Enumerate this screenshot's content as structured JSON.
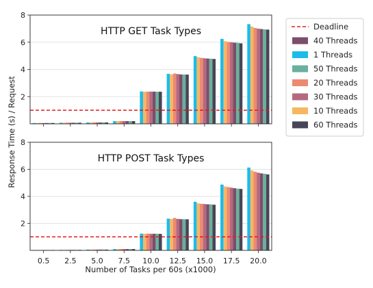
{
  "chart_data": {
    "type": "bar",
    "xlabel": "Number of Tasks per 60s (x1000)",
    "ylabel": "Response Time (s) / Request",
    "categories": [
      "0.5",
      "2.5",
      "5.0",
      "7.5",
      "10.0",
      "12.5",
      "15.0",
      "17.5",
      "20.0"
    ],
    "deadline": {
      "name": "Deadline",
      "value": 1.0,
      "color": "#e31a1c"
    },
    "legend_position": "outside-right",
    "grid": "horizontal",
    "series_order": [
      "1 Threads",
      "10 Threads",
      "20 Threads",
      "30 Threads",
      "40 Threads",
      "50 Threads",
      "60 Threads"
    ],
    "legend_order": [
      "40 Threads",
      "1 Threads",
      "50 Threads",
      "20 Threads",
      "30 Threads",
      "10 Threads",
      "60 Threads"
    ],
    "colors": {
      "1 Threads": "#1cbcea",
      "10 Threads": "#f6b763",
      "20 Threads": "#ec8a70",
      "30 Threads": "#b5697f",
      "40 Threads": "#7b4e6a",
      "50 Threads": "#6ab09c",
      "60 Threads": "#474556"
    },
    "panels": [
      {
        "title": "HTTP GET Task Types",
        "ylim": [
          0,
          8
        ],
        "yticks": [
          "2",
          "4",
          "6",
          "8"
        ],
        "series": [
          {
            "name": "1 Threads",
            "values": [
              0.06,
              0.08,
              0.1,
              0.2,
              2.38,
              3.68,
              4.98,
              6.25,
              7.33
            ]
          },
          {
            "name": "10 Threads",
            "values": [
              0.06,
              0.08,
              0.1,
              0.2,
              2.36,
              3.64,
              4.9,
              6.08,
              7.15
            ]
          },
          {
            "name": "20 Threads",
            "values": [
              0.06,
              0.08,
              0.1,
              0.2,
              2.37,
              3.7,
              4.85,
              6.02,
              7.05
            ]
          },
          {
            "name": "30 Threads",
            "values": [
              0.06,
              0.08,
              0.1,
              0.2,
              2.37,
              3.66,
              4.82,
              6.0,
              7.0
            ]
          },
          {
            "name": "40 Threads",
            "values": [
              0.06,
              0.08,
              0.1,
              0.2,
              2.37,
              3.63,
              4.8,
              5.97,
              6.97
            ]
          },
          {
            "name": "50 Threads",
            "values": [
              0.06,
              0.08,
              0.1,
              0.2,
              2.36,
              3.63,
              4.79,
              5.96,
              6.95
            ]
          },
          {
            "name": "60 Threads",
            "values": [
              0.06,
              0.08,
              0.1,
              0.2,
              2.36,
              3.62,
              4.77,
              5.92,
              6.93
            ]
          }
        ]
      },
      {
        "title": "HTTP POST Task Types",
        "ylim": [
          0,
          8
        ],
        "yticks": [
          "2",
          "4",
          "6",
          "8"
        ],
        "series": [
          {
            "name": "1 Threads",
            "values": [
              0.03,
              0.04,
              0.06,
              0.1,
              1.24,
              2.35,
              3.6,
              4.87,
              6.13
            ]
          },
          {
            "name": "10 Threads",
            "values": [
              0.03,
              0.04,
              0.06,
              0.1,
              1.23,
              2.33,
              3.48,
              4.73,
              5.92
            ]
          },
          {
            "name": "20 Threads",
            "values": [
              0.03,
              0.04,
              0.06,
              0.1,
              1.24,
              2.4,
              3.45,
              4.68,
              5.82
            ]
          },
          {
            "name": "30 Threads",
            "values": [
              0.03,
              0.04,
              0.06,
              0.1,
              1.23,
              2.33,
              3.43,
              4.64,
              5.75
            ]
          },
          {
            "name": "40 Threads",
            "values": [
              0.03,
              0.04,
              0.06,
              0.1,
              1.23,
              2.31,
              3.41,
              4.6,
              5.7
            ]
          },
          {
            "name": "50 Threads",
            "values": [
              0.03,
              0.04,
              0.06,
              0.1,
              1.23,
              2.31,
              3.4,
              4.57,
              5.67
            ]
          },
          {
            "name": "60 Threads",
            "values": [
              0.03,
              0.04,
              0.06,
              0.1,
              1.22,
              2.3,
              3.38,
              4.55,
              5.62
            ]
          }
        ]
      }
    ]
  }
}
